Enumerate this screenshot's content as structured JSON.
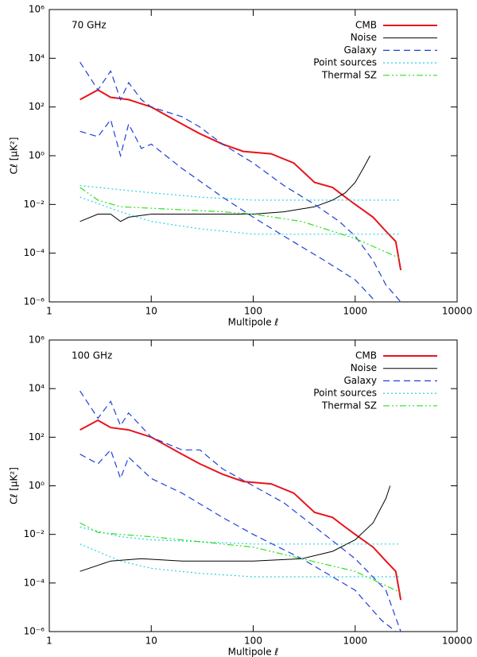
{
  "chart_data": [
    {
      "type": "line",
      "annotation": "70 GHz",
      "xlabel": "Multipole ℓ",
      "ylabel": "Cℓ [μK²]",
      "xscale": "log",
      "yscale": "log",
      "xlim": [
        1,
        10000
      ],
      "ylim": [
        1e-06,
        1000000
      ],
      "xticks": [
        1,
        10,
        100,
        1000,
        10000
      ],
      "yticks": [
        {
          "value": 1e-06,
          "label": "10⁻⁶"
        },
        {
          "value": 0.0001,
          "label": "10⁻⁴"
        },
        {
          "value": 0.01,
          "label": "10⁻²"
        },
        {
          "value": 1,
          "label": "10⁰"
        },
        {
          "value": 100,
          "label": "10²"
        },
        {
          "value": 10000,
          "label": "10⁴"
        },
        {
          "value": 1000000,
          "label": "10⁶"
        }
      ],
      "legend": "upper right",
      "series": [
        {
          "name": "CMB",
          "color": "#e8141b",
          "dash": "solid",
          "width": 2,
          "x": [
            2,
            3,
            4,
            6,
            10,
            20,
            30,
            50,
            80,
            150,
            250,
            400,
            600,
            800,
            1000,
            1500,
            2000,
            2500,
            2800
          ],
          "values": [
            200,
            500,
            250,
            200,
            100,
            20,
            8,
            3,
            1.5,
            1.2,
            0.5,
            0.08,
            0.05,
            0.02,
            0.01,
            0.003,
            0.0008,
            0.0003,
            2e-05
          ]
        },
        {
          "name": "Noise",
          "color": "#000000",
          "dash": "solid",
          "width": 1,
          "x": [
            2,
            3,
            4,
            5,
            6,
            10,
            20,
            50,
            100,
            200,
            400,
            600,
            800,
            1000,
            1200,
            1400
          ],
          "values": [
            0.002,
            0.004,
            0.004,
            0.002,
            0.003,
            0.004,
            0.004,
            0.004,
            0.004,
            0.005,
            0.008,
            0.015,
            0.03,
            0.08,
            0.3,
            1
          ]
        },
        {
          "name": "Galaxy",
          "color": "#1f3fd6",
          "dash": "dashed",
          "width": 1.2,
          "x": [
            2,
            3,
            4,
            5,
            6,
            8,
            10,
            20,
            30,
            50,
            100,
            200,
            400,
            700,
            1000,
            1500,
            2000,
            2800
          ],
          "values": [
            7000,
            500,
            3000,
            200,
            1000,
            200,
            100,
            40,
            15,
            3,
            0.5,
            0.06,
            0.01,
            0.002,
            0.0005,
            5e-05,
            5e-06,
            1e-06
          ]
        },
        {
          "color": "#1f3fd6",
          "dash": "dashed",
          "width": 1.2,
          "x": [
            2,
            3,
            4,
            5,
            6,
            8,
            10,
            20,
            50,
            100,
            200,
            500,
            1000,
            1600
          ],
          "values": [
            10,
            6,
            30,
            1,
            20,
            2,
            3,
            0.3,
            0.02,
            0.003,
            0.0005,
            5e-05,
            8e-06,
            1e-06
          ]
        },
        {
          "name": "Point sources",
          "color": "#22d3e6",
          "dash": "dotted",
          "width": 1.2,
          "x": [
            2,
            5,
            10,
            30,
            100,
            2800
          ],
          "values": [
            0.06,
            0.04,
            0.03,
            0.02,
            0.015,
            0.015
          ]
        },
        {
          "color": "#22d3e6",
          "dash": "dotted",
          "width": 1.2,
          "x": [
            2,
            5,
            10,
            30,
            100,
            2800
          ],
          "values": [
            0.02,
            0.005,
            0.002,
            0.001,
            0.0006,
            0.0006
          ]
        },
        {
          "name": "Thermal SZ",
          "color": "#2ee01e",
          "dash": "dashdotdot",
          "width": 1.2,
          "x": [
            2,
            3,
            5,
            10,
            20,
            50,
            100,
            300,
            1000,
            2800
          ],
          "values": [
            0.05,
            0.015,
            0.008,
            0.007,
            0.006,
            0.005,
            0.004,
            0.002,
            0.0004,
            6e-05
          ]
        }
      ]
    },
    {
      "type": "line",
      "annotation": "100 GHz",
      "xlabel": "Multipole ℓ",
      "ylabel": "Cℓ [μK²]",
      "xscale": "log",
      "yscale": "log",
      "xlim": [
        1,
        10000
      ],
      "ylim": [
        1e-06,
        1000000
      ],
      "xticks": [
        1,
        10,
        100,
        1000,
        10000
      ],
      "yticks": [
        {
          "value": 1e-06,
          "label": "10⁻⁶"
        },
        {
          "value": 0.0001,
          "label": "10⁻⁴"
        },
        {
          "value": 0.01,
          "label": "10⁻²"
        },
        {
          "value": 1,
          "label": "10⁰"
        },
        {
          "value": 100,
          "label": "10²"
        },
        {
          "value": 10000,
          "label": "10⁴"
        },
        {
          "value": 1000000,
          "label": "10⁶"
        }
      ],
      "legend": "upper right",
      "series": [
        {
          "name": "CMB",
          "color": "#e8141b",
          "dash": "solid",
          "width": 2,
          "x": [
            2,
            3,
            4,
            6,
            10,
            20,
            30,
            50,
            80,
            150,
            250,
            400,
            600,
            800,
            1000,
            1500,
            2000,
            2500,
            2800
          ],
          "values": [
            200,
            500,
            250,
            200,
            100,
            20,
            8,
            3,
            1.5,
            1.2,
            0.5,
            0.08,
            0.05,
            0.02,
            0.01,
            0.003,
            0.0008,
            0.0003,
            2e-05
          ]
        },
        {
          "name": "Noise",
          "color": "#000000",
          "dash": "solid",
          "width": 1,
          "x": [
            2,
            4,
            8,
            20,
            100,
            300,
            600,
            1000,
            1500,
            2000,
            2200
          ],
          "values": [
            0.0003,
            0.0008,
            0.001,
            0.0008,
            0.0008,
            0.001,
            0.002,
            0.006,
            0.03,
            0.3,
            1
          ]
        },
        {
          "name": "Galaxy",
          "color": "#1f3fd6",
          "dash": "dashed",
          "width": 1.2,
          "x": [
            2,
            3,
            4,
            5,
            6,
            10,
            20,
            30,
            50,
            100,
            200,
            500,
            1000,
            2000,
            2800
          ],
          "values": [
            8000,
            600,
            3000,
            300,
            1000,
            100,
            30,
            30,
            5,
            1,
            0.2,
            0.01,
            0.001,
            5e-05,
            1e-06
          ]
        },
        {
          "color": "#1f3fd6",
          "dash": "dashed",
          "width": 1.2,
          "x": [
            2,
            3,
            4,
            5,
            6,
            10,
            20,
            50,
            100,
            300,
            1000,
            1800,
            2500
          ],
          "values": [
            20,
            8,
            30,
            2,
            15,
            2,
            0.5,
            0.05,
            0.01,
            0.001,
            5e-05,
            3e-06,
            1e-06
          ]
        },
        {
          "name": "Point sources",
          "color": "#22d3e6",
          "dash": "dotted",
          "width": 1.2,
          "x": [
            2,
            5,
            10,
            30,
            100,
            2800
          ],
          "values": [
            0.02,
            0.008,
            0.006,
            0.005,
            0.004,
            0.004
          ]
        },
        {
          "color": "#22d3e6",
          "dash": "dotted",
          "width": 1.2,
          "x": [
            2,
            5,
            10,
            30,
            100,
            2800
          ],
          "values": [
            0.004,
            0.0008,
            0.0004,
            0.00025,
            0.00018,
            0.00018
          ]
        },
        {
          "name": "Thermal SZ",
          "color": "#2ee01e",
          "dash": "dashdotdot",
          "width": 1.2,
          "x": [
            2,
            3,
            5,
            10,
            30,
            100,
            300,
            1000,
            2800
          ],
          "values": [
            0.03,
            0.012,
            0.01,
            0.008,
            0.005,
            0.003,
            0.001,
            0.0003,
            4e-05
          ]
        }
      ]
    }
  ]
}
